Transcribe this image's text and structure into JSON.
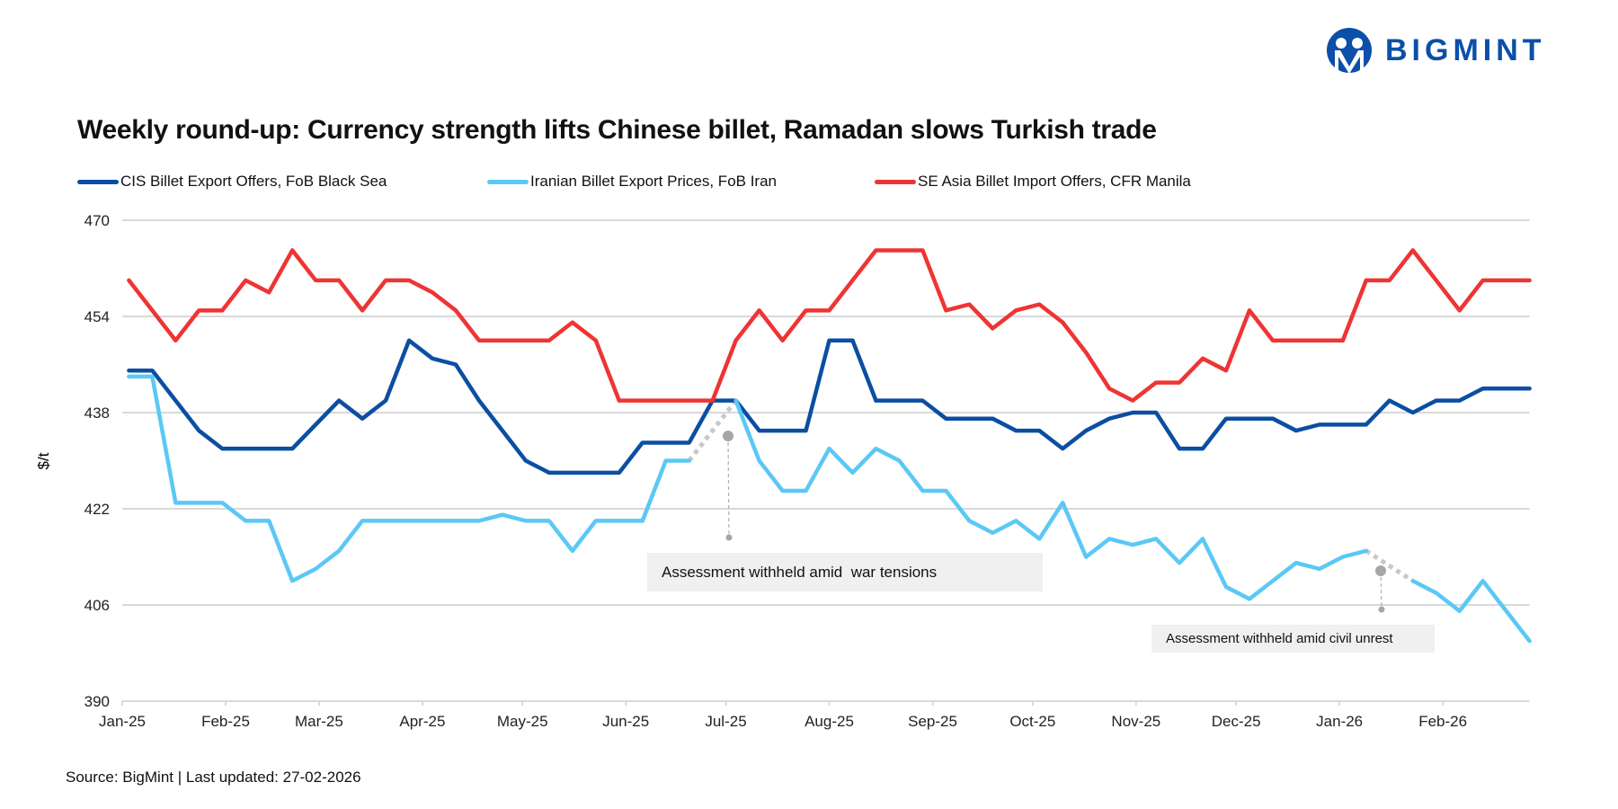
{
  "brand": {
    "name": "BIGMINT",
    "color": "#0b4fa8"
  },
  "source": "Source: BigMint | Last updated: 27-02-2026",
  "chart_data": {
    "type": "line",
    "title": "Weekly round-up: Currency strength lifts Chinese billet, Ramadan slows Turkish trade",
    "ylabel": "$/t",
    "xlabel": "",
    "ylim": [
      390,
      470
    ],
    "yticks": [
      390,
      406,
      422,
      438,
      454,
      470
    ],
    "x_start": "2025-01-03",
    "x_step_days": 7,
    "x_range": [
      "2025-01-01",
      "2026-02-27"
    ],
    "xtick_labels": [
      "Jan-25",
      "Feb-25",
      "Mar-25",
      "Apr-25",
      "May-25",
      "Jun-25",
      "Jul-25",
      "Aug-25",
      "Sep-25",
      "Oct-25",
      "Nov-25",
      "Dec-25",
      "Jan-26",
      "Feb-26"
    ],
    "grid": true,
    "legend": "top",
    "series": [
      {
        "name": "CIS Billet Export Offers, FoB Black Sea",
        "color": "#0b4ea2",
        "values": [
          445,
          445,
          440,
          435,
          432,
          432,
          432,
          432,
          436,
          440,
          437,
          440,
          450,
          447,
          446,
          440,
          435,
          430,
          428,
          428,
          428,
          428,
          433,
          433,
          433,
          440,
          440,
          435,
          435,
          435,
          450,
          450,
          440,
          440,
          440,
          437,
          437,
          437,
          435,
          435,
          432,
          435,
          437,
          438,
          438,
          432,
          432,
          437,
          437,
          437,
          435,
          436,
          436,
          436,
          440,
          438,
          440,
          440,
          442,
          442,
          442
        ]
      },
      {
        "name": "Iranian Billet Export Prices, FoB Iran",
        "color": "#5bc8f5",
        "values": [
          444,
          444,
          423,
          423,
          423,
          420,
          420,
          410,
          412,
          415,
          420,
          420,
          420,
          420,
          420,
          420,
          421,
          420,
          420,
          415,
          420,
          420,
          420,
          430,
          430,
          null,
          440,
          430,
          425,
          425,
          432,
          428,
          432,
          430,
          425,
          425,
          420,
          418,
          420,
          417,
          423,
          414,
          417,
          416,
          417,
          413,
          417,
          409,
          407,
          410,
          413,
          412,
          414,
          415,
          null,
          410,
          408,
          405,
          410,
          405,
          400
        ]
      },
      {
        "name": "SE Asia Billet Import Offers, CFR Manila",
        "color": "#ee3434",
        "values": [
          460,
          455,
          450,
          455,
          455,
          460,
          458,
          465,
          460,
          460,
          455,
          460,
          460,
          458,
          455,
          450,
          450,
          450,
          450,
          453,
          450,
          440,
          440,
          440,
          440,
          440,
          450,
          455,
          450,
          455,
          455,
          460,
          465,
          465,
          465,
          455,
          456,
          452,
          455,
          456,
          453,
          448,
          442,
          440,
          443,
          443,
          447,
          445,
          455,
          450,
          450,
          450,
          450,
          460,
          460,
          465,
          460,
          455,
          460,
          460,
          460
        ]
      }
    ],
    "annotations": [
      {
        "text": "Assessment withheld amid  war tensions",
        "series": "Iranian Billet Export Prices, FoB Iran",
        "gap_week_index": 25
      },
      {
        "text": "Assessment withheld amid civil unrest",
        "series": "Iranian Billet Export Prices, FoB Iran",
        "gap_week_index": 54
      }
    ]
  }
}
